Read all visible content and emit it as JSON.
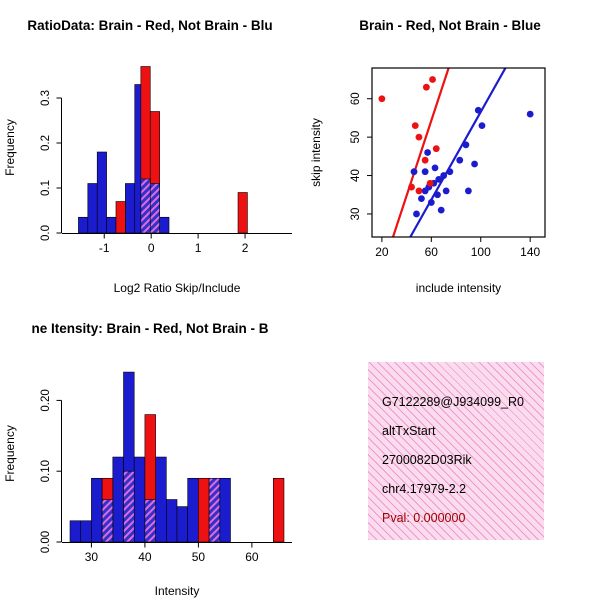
{
  "colors": {
    "red": "#EE1111",
    "blue": "#1C1CCF",
    "hatch_bg": "#3232C8",
    "hatch_line": "#E06AE0",
    "axis": "#000000",
    "info_bg": "#FADCEE",
    "info_hatch": "#ED9ACC",
    "pval_text": "#A00000"
  },
  "chart_data": [
    {
      "id": "log_ratio_hist",
      "type": "bar",
      "title": "RatioData: Brain - Red, Not Brain - Blu",
      "xlabel": "Log2 Ratio Skip/Include",
      "ylabel": "Frequency",
      "xlim": [
        -1.9,
        3.0
      ],
      "ylim": [
        0,
        0.38
      ],
      "xticks": [
        -1,
        0,
        1,
        2
      ],
      "xtick_labels": [
        "-1",
        "0",
        "1",
        "2"
      ],
      "yticks": [
        0,
        0.1,
        0.2,
        0.3
      ],
      "ytick_labels": [
        "0.0",
        "0.1",
        "0.2",
        "0.3"
      ],
      "legend": {
        "Brain": "red",
        "Not Brain": "blue",
        "overlap": "hatch"
      },
      "bars": [
        [
          -1.55,
          -1.35,
          0.035,
          "b"
        ],
        [
          -1.35,
          -1.15,
          0.11,
          "b"
        ],
        [
          -1.15,
          -0.95,
          0.18,
          "b"
        ],
        [
          -0.95,
          -0.75,
          0.035,
          "b"
        ],
        [
          -0.75,
          -0.55,
          0.07,
          "r"
        ],
        [
          -0.72,
          -0.52,
          0.035,
          "b"
        ],
        [
          -0.55,
          -0.35,
          0.11,
          "b"
        ],
        [
          -0.35,
          -0.15,
          0.33,
          "b"
        ],
        [
          -0.22,
          -0.02,
          0.37,
          "r"
        ],
        [
          -0.22,
          -0.02,
          0.12,
          "h"
        ],
        [
          -0.02,
          0.18,
          0.27,
          "r"
        ],
        [
          -0.02,
          0.18,
          0.11,
          "h"
        ],
        [
          0.18,
          0.38,
          0.035,
          "b"
        ],
        [
          1.85,
          2.05,
          0.09,
          "r"
        ]
      ]
    },
    {
      "id": "scatter",
      "type": "scatter",
      "title": "Brain - Red, Not Brain - Blue",
      "xlabel": "include intensity",
      "ylabel": "skip intensity",
      "xlim": [
        12,
        152
      ],
      "ylim": [
        24,
        68
      ],
      "xticks": [
        20,
        60,
        100,
        140
      ],
      "xtick_labels": [
        "20",
        "60",
        "100",
        "140"
      ],
      "yticks": [
        30,
        40,
        50,
        60
      ],
      "ytick_labels": [
        "30",
        "40",
        "50",
        "60"
      ],
      "red_points": [
        [
          20,
          60
        ],
        [
          56,
          63
        ],
        [
          61,
          65
        ],
        [
          47,
          53
        ],
        [
          50,
          50
        ],
        [
          55,
          44
        ],
        [
          44,
          37
        ],
        [
          50,
          36
        ],
        [
          59,
          38
        ],
        [
          64,
          47
        ]
      ],
      "blue_points": [
        [
          140,
          56
        ],
        [
          98,
          57
        ],
        [
          101,
          53
        ],
        [
          88,
          48
        ],
        [
          95,
          43
        ],
        [
          83,
          44
        ],
        [
          75,
          41
        ],
        [
          70,
          40
        ],
        [
          66,
          39
        ],
        [
          62,
          38
        ],
        [
          58,
          37
        ],
        [
          55,
          36
        ],
        [
          52,
          34
        ],
        [
          60,
          33
        ],
        [
          68,
          31
        ],
        [
          90,
          36
        ],
        [
          48,
          30
        ],
        [
          46,
          41
        ],
        [
          55,
          41
        ],
        [
          63,
          42
        ],
        [
          72,
          36
        ],
        [
          57,
          46
        ],
        [
          65,
          35
        ]
      ],
      "red_line": [
        [
          29,
          24
        ],
        [
          74,
          68
        ]
      ],
      "blue_line": [
        [
          43,
          24
        ],
        [
          120,
          68
        ]
      ]
    },
    {
      "id": "intensity_hist",
      "type": "bar",
      "title": "ne Itensity: Brain - Red, Not Brain - B",
      "xlabel": "Intensity",
      "ylabel": "Frequency",
      "xlim": [
        24.5,
        67.5
      ],
      "ylim": [
        0,
        0.25
      ],
      "xticks": [
        30,
        40,
        50,
        60
      ],
      "xtick_labels": [
        "30",
        "40",
        "50",
        "60"
      ],
      "yticks": [
        0,
        0.1,
        0.2
      ],
      "ytick_labels": [
        "0.00",
        "0.10",
        "0.20"
      ],
      "legend": {
        "Brain": "red",
        "Not Brain": "blue",
        "overlap": "hatch"
      },
      "bars": [
        [
          26,
          28,
          0.03,
          "b"
        ],
        [
          28,
          30,
          0.03,
          "b"
        ],
        [
          30,
          32,
          0.09,
          "b"
        ],
        [
          32,
          34,
          0.09,
          "r"
        ],
        [
          32,
          34,
          0.06,
          "h"
        ],
        [
          34,
          36,
          0.12,
          "b"
        ],
        [
          36,
          38,
          0.24,
          "b"
        ],
        [
          36,
          38,
          0.1,
          "h"
        ],
        [
          38,
          40,
          0.12,
          "b"
        ],
        [
          40,
          42,
          0.18,
          "r"
        ],
        [
          40,
          42,
          0.06,
          "h"
        ],
        [
          42,
          44,
          0.12,
          "b"
        ],
        [
          44,
          46,
          0.06,
          "b"
        ],
        [
          46,
          48,
          0.05,
          "b"
        ],
        [
          48,
          50,
          0.09,
          "b"
        ],
        [
          50,
          52,
          0.09,
          "r"
        ],
        [
          52,
          54,
          0.09,
          "h"
        ],
        [
          54,
          56,
          0.09,
          "b"
        ],
        [
          64,
          66,
          0.09,
          "r"
        ]
      ]
    }
  ],
  "info_box": {
    "lines": [
      "G7122289@J934099_R0",
      "altTxStart",
      "2700082D03Rik",
      "chr4.17979-2.2"
    ],
    "pval_line": "Pval: 0.000000"
  }
}
